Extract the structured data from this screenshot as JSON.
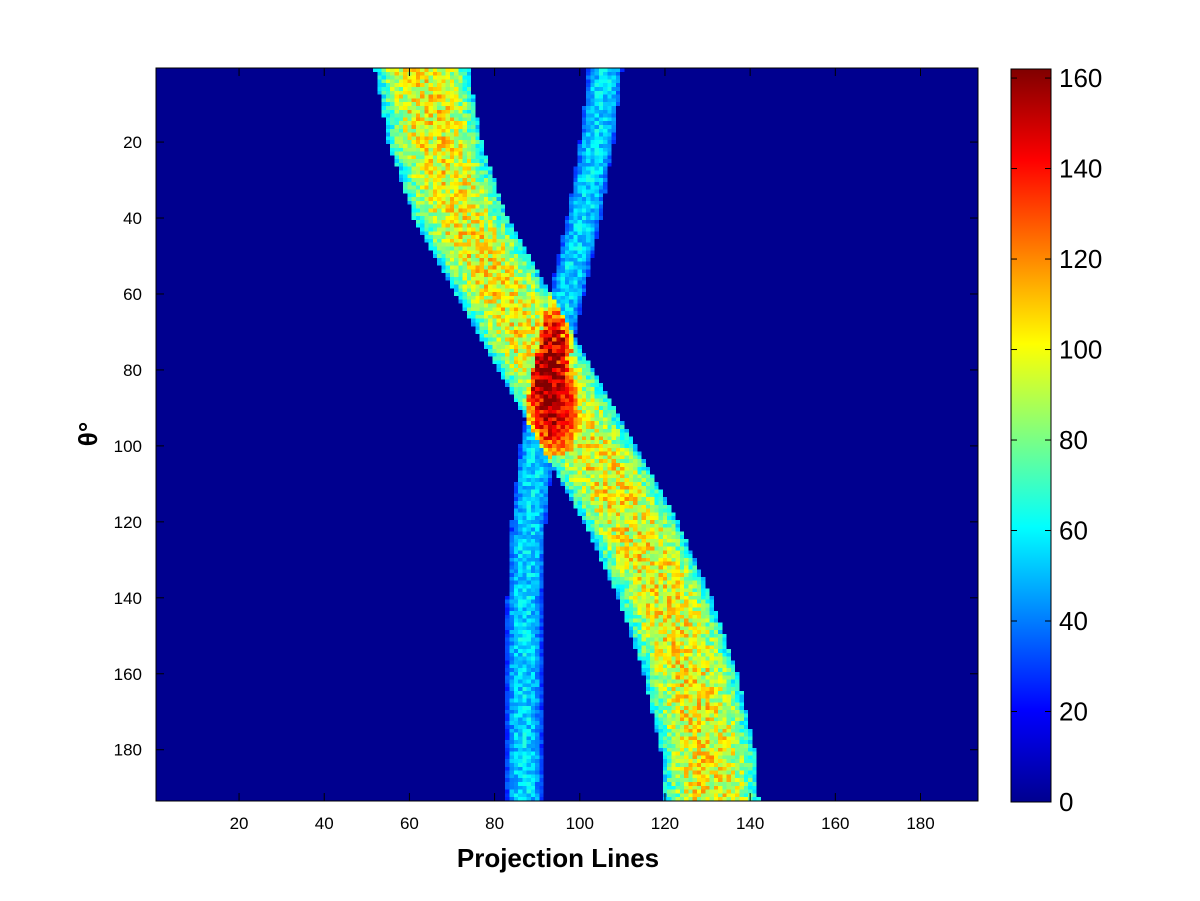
{
  "chart_data": {
    "type": "heatmap",
    "title": "",
    "xlabel": "Projection Lines",
    "ylabel": "θ°",
    "xlim": [
      1,
      193
    ],
    "ylim": [
      1,
      193
    ],
    "y_direction": "reversed",
    "x_ticks": [
      "20",
      "40",
      "60",
      "80",
      "100",
      "120",
      "140",
      "160",
      "180"
    ],
    "y_ticks": [
      "20",
      "40",
      "60",
      "80",
      "100",
      "120",
      "140",
      "160",
      "180"
    ],
    "colormap": "jet",
    "colorbar": {
      "range": [
        0,
        162
      ],
      "ticks": [
        "0",
        "20",
        "40",
        "60",
        "80",
        "100",
        "120",
        "140",
        "160"
      ],
      "placement": "right"
    },
    "background_value": 0,
    "series": [
      {
        "band": "wide",
        "center_x_at_theta": [
          [
            1,
            63
          ],
          [
            20,
            66
          ],
          [
            40,
            72
          ],
          [
            60,
            82
          ],
          [
            80,
            92
          ],
          [
            100,
            102
          ],
          [
            120,
            112
          ],
          [
            140,
            120
          ],
          [
            160,
            126
          ],
          [
            180,
            130
          ],
          [
            193,
            131
          ]
        ],
        "half_width": 11,
        "peak_value": 100
      },
      {
        "band": "narrow",
        "center_x_at_theta": [
          [
            1,
            106
          ],
          [
            20,
            104
          ],
          [
            40,
            101
          ],
          [
            60,
            97
          ],
          [
            80,
            93
          ],
          [
            100,
            90
          ],
          [
            120,
            88
          ],
          [
            140,
            87
          ],
          [
            160,
            87
          ],
          [
            180,
            87
          ],
          [
            193,
            87
          ]
        ],
        "half_width": 4,
        "peak_value": 55
      }
    ],
    "max_region": {
      "x": 95,
      "theta": 90,
      "value": 160
    }
  }
}
